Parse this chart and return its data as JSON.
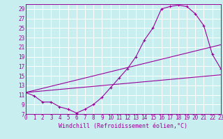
{
  "xlabel": "Windchill (Refroidissement éolien,°C)",
  "bg_color": "#c8eef0",
  "line_color": "#990099",
  "grid_color": "#ffffff",
  "xlim": [
    0,
    23
  ],
  "ylim": [
    7,
    30
  ],
  "yticks": [
    7,
    9,
    11,
    13,
    15,
    17,
    19,
    21,
    23,
    25,
    27,
    29
  ],
  "xticks": [
    0,
    1,
    2,
    3,
    4,
    5,
    6,
    7,
    8,
    9,
    10,
    11,
    12,
    13,
    14,
    15,
    16,
    17,
    18,
    19,
    20,
    21,
    22,
    23
  ],
  "curve1_x": [
    0,
    1,
    2,
    3,
    4,
    5,
    6,
    7,
    8,
    9,
    10,
    11,
    12,
    13,
    14,
    15,
    16,
    17,
    18,
    19,
    20,
    21,
    22,
    23
  ],
  "curve1_y": [
    11.5,
    10.8,
    9.5,
    9.5,
    8.5,
    8.0,
    7.2,
    8.0,
    9.0,
    10.5,
    12.5,
    14.5,
    16.5,
    19.0,
    22.5,
    25.0,
    29.0,
    29.5,
    29.8,
    29.5,
    28.0,
    25.5,
    19.5,
    16.5
  ],
  "curve2_x": [
    0,
    23
  ],
  "curve2_y": [
    11.5,
    15.2
  ],
  "curve3_x": [
    0,
    23
  ],
  "curve3_y": [
    11.5,
    21.5
  ],
  "figsize": [
    3.2,
    2.0
  ],
  "dpi": 100
}
